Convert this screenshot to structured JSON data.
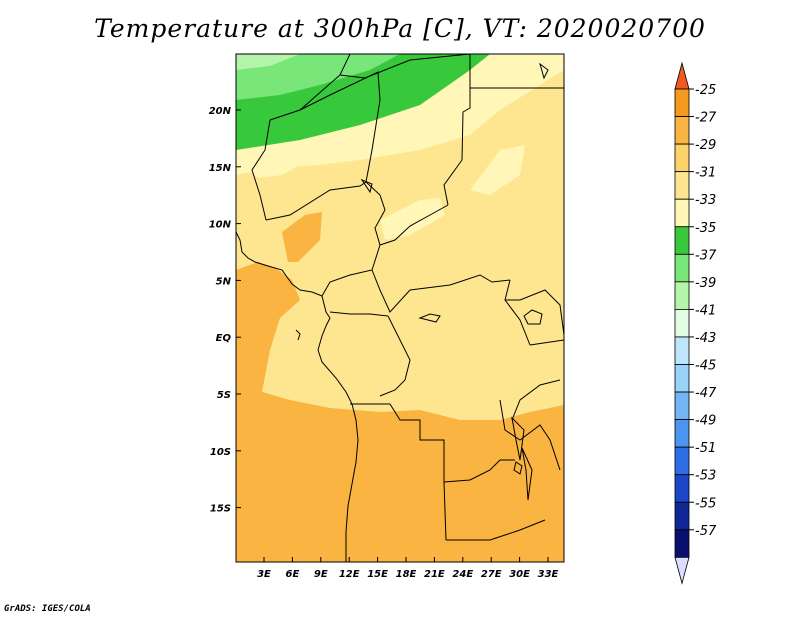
{
  "title": "Temperature at 300hPa [C], VT: 2020020700",
  "credit": "GrADS: IGES/COLA",
  "lat_ticks": [
    "20N",
    "15N",
    "10N",
    "5N",
    "EQ",
    "5S",
    "10S",
    "15S"
  ],
  "lon_ticks": [
    "3E",
    "6E",
    "9E",
    "12E",
    "15E",
    "18E",
    "21E",
    "24E",
    "27E",
    "30E",
    "33E"
  ],
  "colorbar": {
    "labels": [
      "-25",
      "-27",
      "-29",
      "-31",
      "-33",
      "-35",
      "-37",
      "-39",
      "-41",
      "-43",
      "-45",
      "-47",
      "-49",
      "-51",
      "-53",
      "-55",
      "-57"
    ],
    "colors": [
      "#f05a1e",
      "#f59a1e",
      "#f9b441",
      "#fcd26b",
      "#fde68f",
      "#fff6b7",
      "#37c83c",
      "#78e678",
      "#b4f5aa",
      "#e3fde3",
      "#bfe5fc",
      "#9bd2fa",
      "#73b4f5",
      "#4a96f0",
      "#2d6ee6",
      "#1e46c8",
      "#0f2896",
      "#0a0f6e",
      "#dcdcff"
    ]
  }
}
